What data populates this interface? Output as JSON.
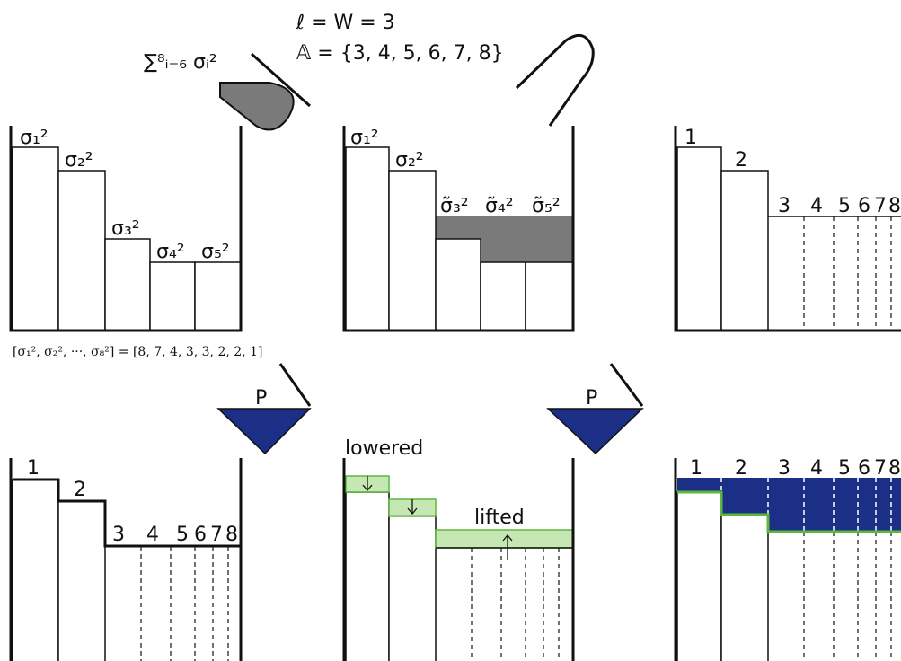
{
  "header": {
    "window": "ℓ = W = 3",
    "set": "𝔸 = {3, 4, 5, 6, 7, 8}",
    "sum": "∑⁸ᵢ₌₆ σᵢ²"
  },
  "panels": [
    {
      "labels": [
        "σ₁²",
        "σ₂²",
        "σ₃²",
        "σ₄²",
        "σ₅²"
      ]
    },
    {
      "labels": [
        "σ₁²",
        "σ₂²",
        "σ̃₃²",
        "σ̃₄²",
        "σ̃₅²"
      ]
    },
    {
      "labels": [
        "1",
        "2",
        "3",
        "4",
        "5",
        "6",
        "7",
        "8"
      ]
    },
    {
      "labels": [
        "1",
        "2",
        "3",
        "4",
        "5",
        "6",
        "7",
        "8"
      ]
    },
    {
      "labels": [
        "1",
        "2",
        "3",
        "4",
        "5",
        "6",
        "7",
        "8"
      ]
    }
  ],
  "caption": "[σ₁², σ₂², ···, σ₈²] = [8, 7, 4, 3, 3, 2, 2, 1]",
  "operators": [
    "P",
    "P"
  ],
  "annotations": {
    "lowered": "lowered",
    "lifted": "lifted"
  }
}
